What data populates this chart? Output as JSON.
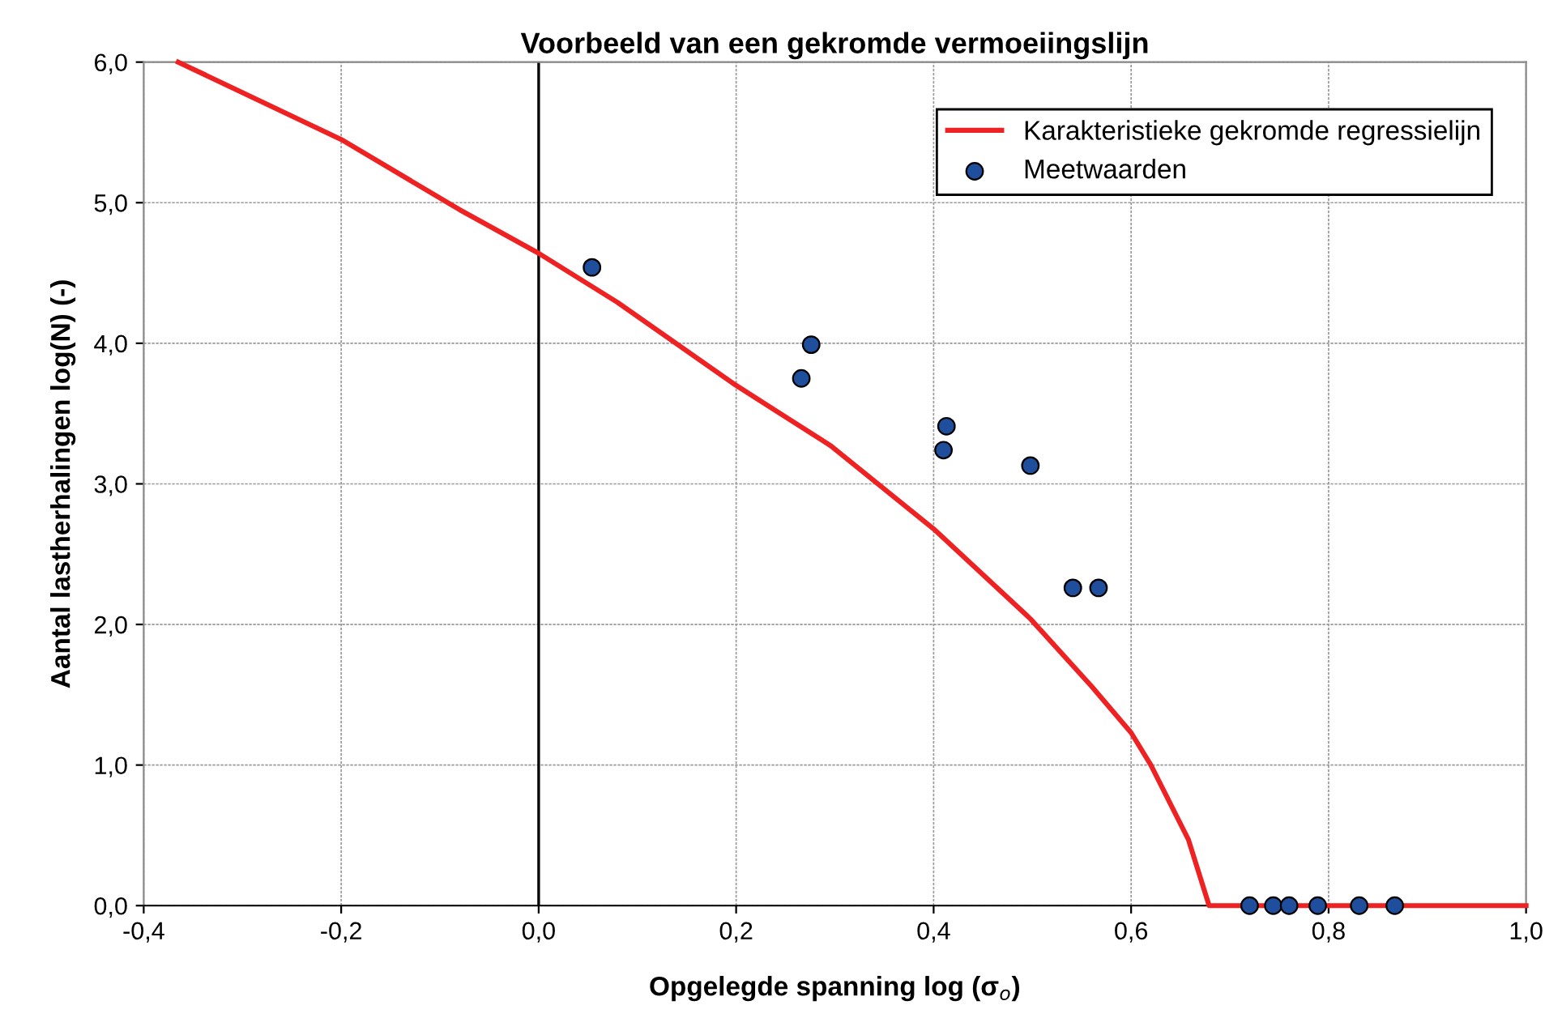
{
  "chart_data": {
    "type": "scatter",
    "title": "Voorbeeld van een gekromde vermoeiingslijn",
    "xlabel": "Opgelegde spanning log (σ$_{o}$)",
    "ylabel": "Aantal lastherhalingen log(N) (-)",
    "xlim": [
      -0.4,
      1.0
    ],
    "xticks": [
      {
        "value": -0.4,
        "label": "-0,4"
      },
      {
        "value": -0.2,
        "label": "-0,2"
      },
      {
        "value": 0.0,
        "label": "0,0"
      },
      {
        "value": 0.2,
        "label": "0,2"
      },
      {
        "value": 0.4,
        "label": "0,4"
      },
      {
        "value": 0.6,
        "label": "0,6"
      },
      {
        "value": 0.8,
        "label": "0,8"
      },
      {
        "value": 1.0,
        "label": "1,0"
      }
    ],
    "ylim": [
      0,
      6
    ],
    "yticks": [
      {
        "value": 0,
        "label": "0,0"
      },
      {
        "value": 1,
        "label": "1,0"
      },
      {
        "value": 2,
        "label": "2,0"
      },
      {
        "value": 3,
        "label": "3,0"
      },
      {
        "value": 4,
        "label": "4,0"
      },
      {
        "value": 5,
        "label": "5,0"
      },
      {
        "value": 6,
        "label": "6,0"
      }
    ],
    "grid": true,
    "legend": "top right",
    "ref_lines": [
      {
        "axis": "x",
        "value": 0,
        "color": "#000000"
      }
    ],
    "series": [
      {
        "name": "Karakteristieke gekromde regressielijn",
        "type": "line",
        "color": "#ee2222",
        "marker": "none",
        "line_style": "solid",
        "x": [
          -0.365,
          -0.2,
          -0.08,
          0.0,
          0.08,
          0.2,
          0.296,
          0.4,
          0.498,
          0.56,
          0.6,
          0.62,
          0.658,
          0.679,
          1.0
        ],
        "values": [
          6.0,
          5.45,
          4.95,
          4.64,
          4.29,
          3.7,
          3.27,
          2.68,
          2.04,
          1.56,
          1.23,
          1.0,
          0.47,
          0.0,
          0.0
        ]
      },
      {
        "name": "Meetwaarden",
        "color": "#1f4e9c",
        "marker": "circle",
        "x": [
          0.054,
          0.266,
          0.276,
          0.41,
          0.413,
          0.498,
          0.541,
          0.567,
          0.72,
          0.744,
          0.76,
          0.789,
          0.831,
          0.867
        ],
        "values": [
          4.54,
          3.75,
          3.99,
          3.24,
          3.41,
          3.13,
          2.26,
          2.26,
          0,
          0,
          0,
          0,
          0,
          0
        ]
      }
    ]
  }
}
